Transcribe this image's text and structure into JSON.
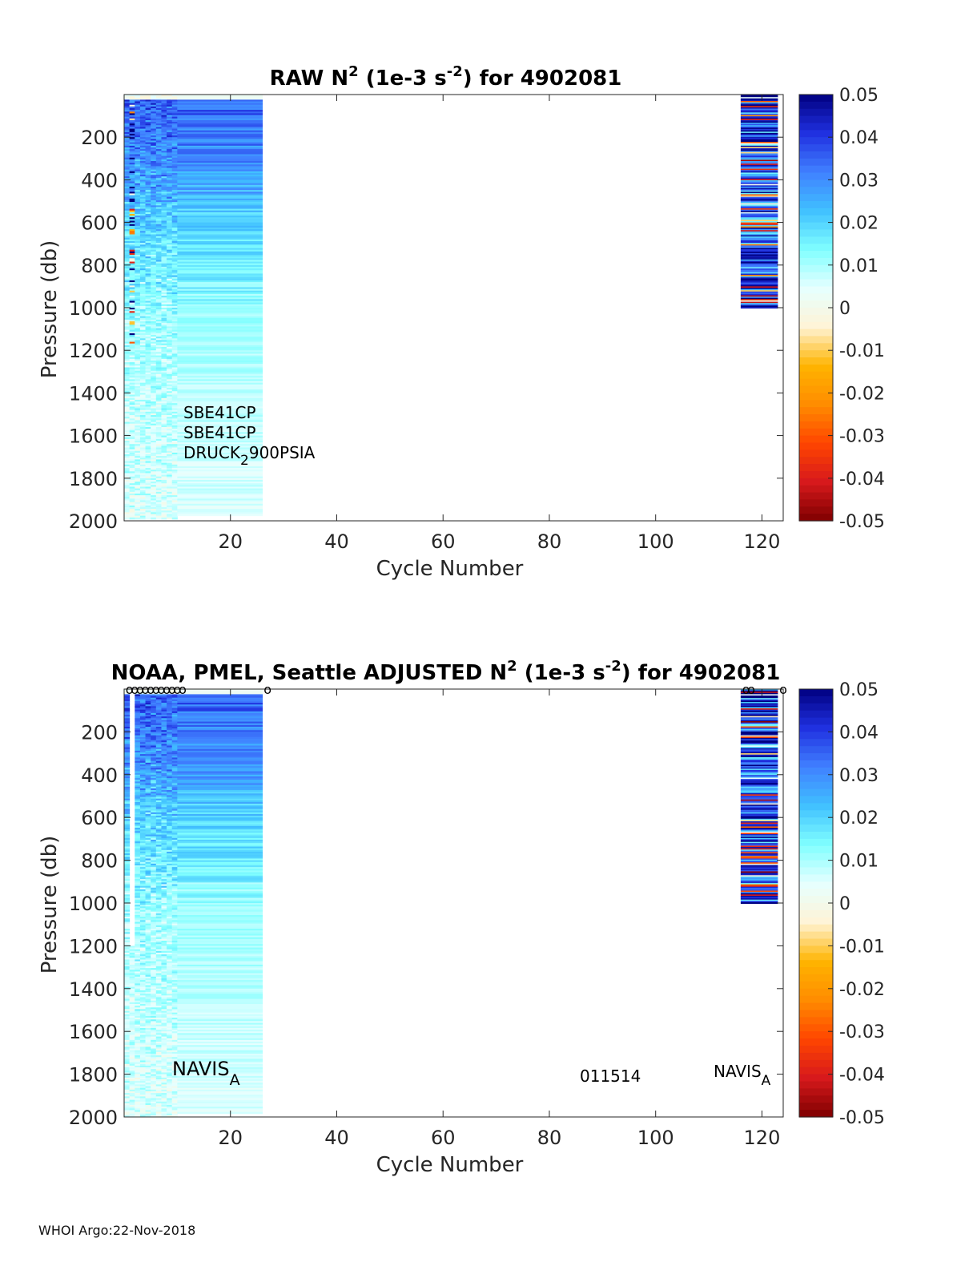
{
  "footer": "WHOI Argo:22-Nov-2018",
  "colorbar": {
    "ticks": [
      "0.05",
      "0.04",
      "0.03",
      "0.02",
      "0.01",
      "0",
      "-0.01",
      "-0.02",
      "-0.03",
      "-0.04",
      "-0.05"
    ],
    "range": [
      -0.05,
      0.05
    ],
    "colormap": [
      "#7f0000",
      "#d7191c",
      "#ff4500",
      "#ff8c00",
      "#ffb400",
      "#fff4d6",
      "#e6ffff",
      "#80ffff",
      "#40c0ff",
      "#4080ff",
      "#2030e0",
      "#000080"
    ]
  },
  "chart_data": [
    {
      "type": "heatmap",
      "panel": "raw",
      "title": "RAW N² (1e-3 s⁻²) for 4902081",
      "title_parts": {
        "pre": "RAW N",
        "sup1": "2",
        "mid": " (1e-3 s",
        "sup2": "-2",
        "post": ") for 4902081"
      },
      "xlabel": "Cycle Number",
      "ylabel": "Pressure (db)",
      "xlim": [
        0,
        124
      ],
      "ylim": [
        2000,
        0
      ],
      "xticks": [
        "20",
        "40",
        "60",
        "80",
        "100",
        "120"
      ],
      "yticks": [
        "200",
        "400",
        "600",
        "800",
        "1000",
        "1200",
        "1400",
        "1600",
        "1800",
        "2000"
      ],
      "data_blocks": [
        {
          "cycles": [
            0,
            10
          ],
          "max_pressure": 1990,
          "pattern": "variable_shallow_profiles"
        },
        {
          "cycles": [
            10,
            26
          ],
          "max_pressure": 1970,
          "pattern": "stratified"
        },
        {
          "cycles": [
            116,
            123
          ],
          "max_pressure": 1000,
          "pattern": "noisy"
        }
      ],
      "annotations": {
        "line1": "SBE41CP",
        "line2": "SBE41CP",
        "line3_pre": "DRUCK",
        "line3_sub": "2",
        "line3_post": "900PSIA"
      }
    },
    {
      "type": "heatmap",
      "panel": "adjusted",
      "title": "NOAA, PMEL, Seattle  ADJUSTED N² (1e-3 s⁻²) for 4902081",
      "title_parts": {
        "pre": "NOAA, PMEL, Seattle  ADJUSTED N",
        "sup1": "2",
        "mid": " (1e-3 s",
        "sup2": "-2",
        "post": ") for 4902081"
      },
      "xlabel": "Cycle Number",
      "ylabel": "Pressure (db)",
      "xlim": [
        0,
        124
      ],
      "ylim": [
        2000,
        0
      ],
      "xticks": [
        "20",
        "40",
        "60",
        "80",
        "100",
        "120"
      ],
      "yticks": [
        "200",
        "400",
        "600",
        "800",
        "1000",
        "1200",
        "1400",
        "1600",
        "1800",
        "2000"
      ],
      "data_blocks": [
        {
          "cycles": [
            0,
            10
          ],
          "max_pressure": 2000,
          "pattern": "variable_profiles"
        },
        {
          "cycles": [
            10,
            26
          ],
          "max_pressure": 1980,
          "pattern": "stratified"
        },
        {
          "cycles": [
            116,
            123
          ],
          "max_pressure": 1000,
          "pattern": "noisy"
        }
      ],
      "top_markers": {
        "symbol": "o",
        "cycles": [
          1,
          2,
          3,
          4,
          5,
          6,
          7,
          8,
          9,
          10,
          11,
          27,
          117,
          118,
          124
        ]
      },
      "annotations": {
        "label1_pre": "NAVIS",
        "label1_sub": "A",
        "label2": "011514",
        "label3_pre": "NAVIS",
        "label3_sub": "A"
      }
    }
  ]
}
